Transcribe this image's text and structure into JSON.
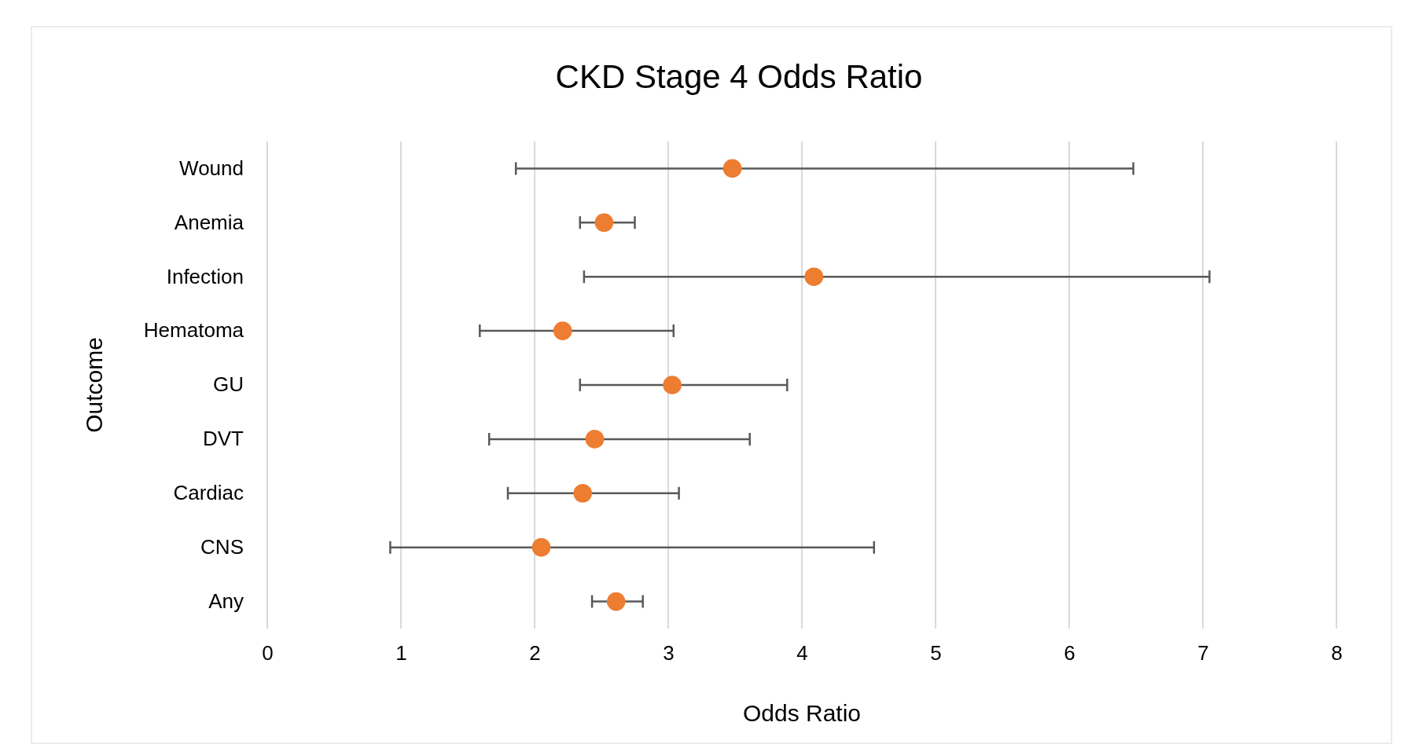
{
  "chart_data": {
    "type": "scatter",
    "orientation": "horizontal",
    "title": "CKD Stage 4 Odds Ratio",
    "xlabel": "Odds Ratio",
    "ylabel": "Outcome",
    "categories": [
      "Wound",
      "Anemia",
      "Infection",
      "Hematoma",
      "GU",
      "DVT",
      "Cardiac",
      "CNS",
      "Any"
    ],
    "values": [
      3.48,
      2.52,
      4.09,
      2.21,
      3.03,
      2.45,
      2.36,
      2.05,
      2.61
    ],
    "errors": [
      [
        1.86,
        6.48
      ],
      [
        2.34,
        2.75
      ],
      [
        2.37,
        7.05
      ],
      [
        1.59,
        3.04
      ],
      [
        2.34,
        3.89
      ],
      [
        1.66,
        3.61
      ],
      [
        1.8,
        3.08
      ],
      [
        0.92,
        4.54
      ],
      [
        2.43,
        2.81
      ]
    ],
    "color": "#ed7d31",
    "marker": "circle",
    "grid": "x",
    "xlim": [
      0,
      8
    ],
    "xticks": [
      0,
      1,
      2,
      3,
      4,
      5,
      6,
      7,
      8
    ]
  }
}
